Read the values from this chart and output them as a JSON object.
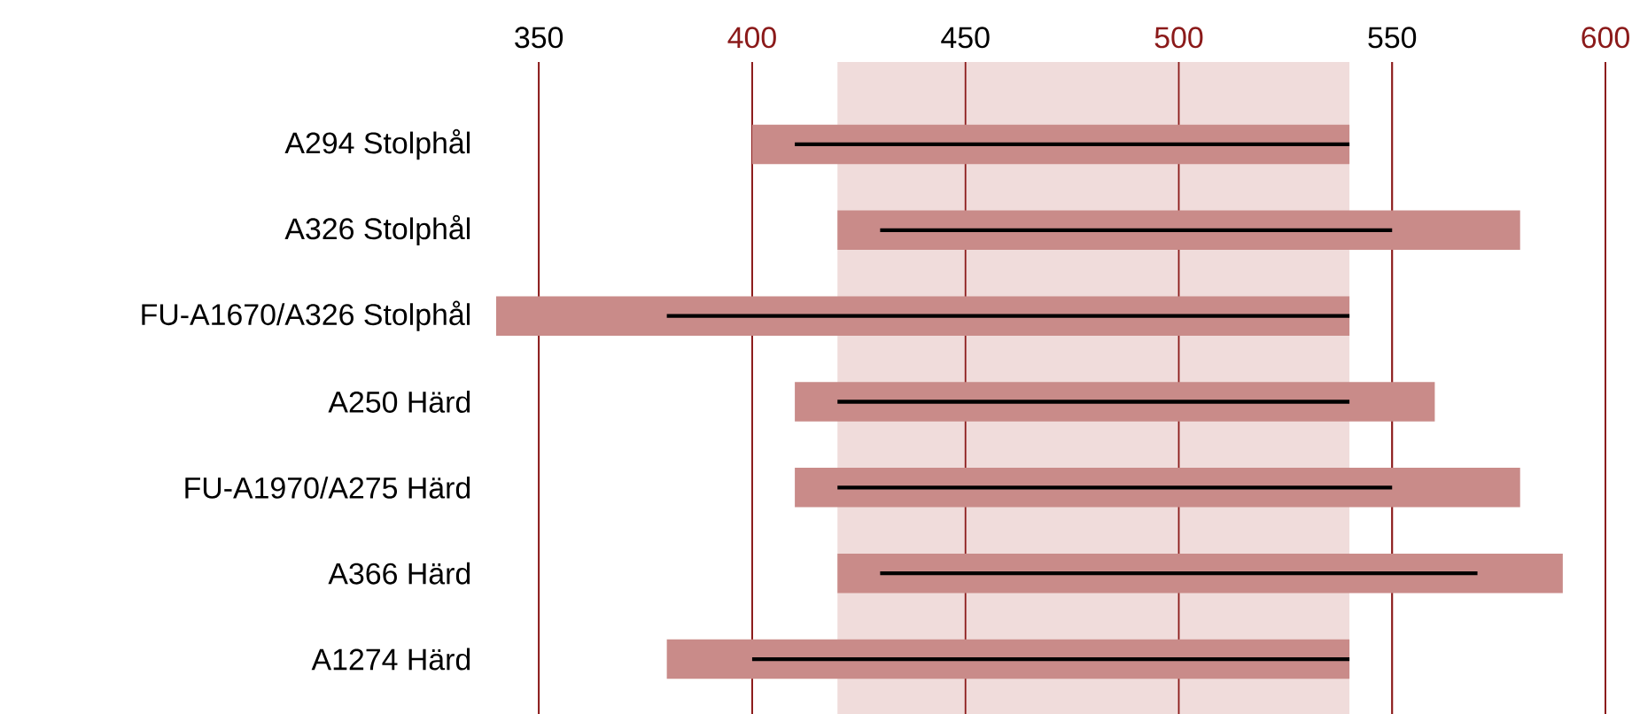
{
  "chart_data": {
    "type": "bar",
    "orientation": "horizontal",
    "categories": [
      "A294 Stolphål",
      "A326 Stolphål",
      "FU-A1670/A326 Stolphål",
      "A250 Härd",
      "FU-A1970/A275 Härd",
      "A366 Härd",
      "A1274 Härd"
    ],
    "series": [
      {
        "color": "#c98b89",
        "base": [
          400,
          420,
          340,
          410,
          410,
          420,
          380
        ],
        "values": [
          140,
          160,
          200,
          150,
          170,
          170,
          160
        ]
      },
      {
        "color": "#000000",
        "base": [
          410,
          430,
          380,
          420,
          420,
          430,
          400
        ],
        "values": [
          130,
          120,
          160,
          120,
          130,
          140,
          140
        ]
      }
    ],
    "xlim": [
      340,
      600
    ],
    "xticks": [
      350,
      400,
      450,
      500,
      550,
      600
    ],
    "grid": "x",
    "bands": [
      {
        "axis": "x",
        "from": 420,
        "to": 540,
        "color": "#f0dcdb"
      }
    ]
  }
}
